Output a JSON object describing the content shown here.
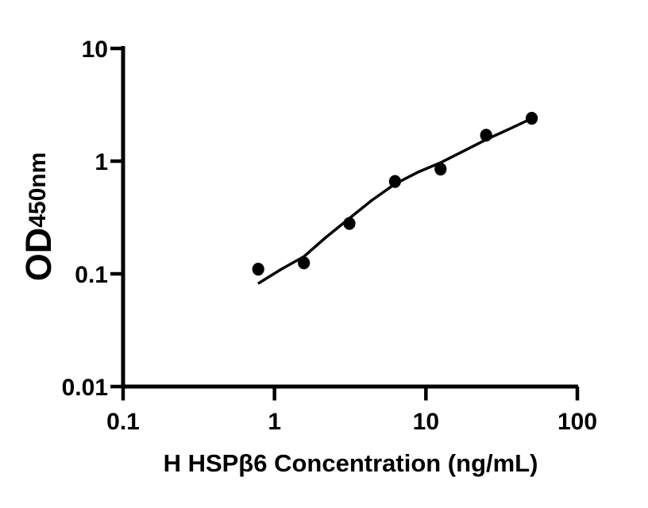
{
  "figure": {
    "background": "#ffffff",
    "foreground": "#000000"
  },
  "chart_data": {
    "type": "scatter",
    "title": "",
    "xlabel": "H HSPβ6 Concentration (ng/mL)",
    "ylabel_main": "OD",
    "ylabel_sub": "450nm",
    "x_scale": "log10",
    "y_scale": "log10",
    "xlim": [
      0.1,
      100
    ],
    "ylim": [
      0.01,
      10
    ],
    "grid": false,
    "legend": "none",
    "x_ticks": [
      {
        "value": 0.1,
        "label": "0.1"
      },
      {
        "value": 1,
        "label": "1"
      },
      {
        "value": 10,
        "label": "10"
      },
      {
        "value": 100,
        "label": "100"
      }
    ],
    "y_ticks": [
      {
        "value": 0.01,
        "label": "0.01"
      },
      {
        "value": 0.1,
        "label": "0.1"
      },
      {
        "value": 1,
        "label": "1"
      },
      {
        "value": 10,
        "label": "10"
      }
    ],
    "series": [
      {
        "name": "standard-curve-points",
        "marker": "filled-circle",
        "color": "#000000",
        "points": [
          {
            "x": 0.781,
            "y": 0.11
          },
          {
            "x": 1.563,
            "y": 0.125
          },
          {
            "x": 3.125,
            "y": 0.28
          },
          {
            "x": 6.25,
            "y": 0.66
          },
          {
            "x": 12.5,
            "y": 0.85
          },
          {
            "x": 25,
            "y": 1.7
          },
          {
            "x": 50,
            "y": 2.4
          }
        ]
      }
    ],
    "fit_curve": {
      "name": "four-parameter-logistic-fit",
      "color": "#000000",
      "points": [
        {
          "x": 0.79,
          "y": 0.083
        },
        {
          "x": 1.11,
          "y": 0.11
        },
        {
          "x": 1.56,
          "y": 0.142
        },
        {
          "x": 2.17,
          "y": 0.209
        },
        {
          "x": 3.11,
          "y": 0.309
        },
        {
          "x": 4.38,
          "y": 0.448
        },
        {
          "x": 6.27,
          "y": 0.629
        },
        {
          "x": 8.93,
          "y": 0.802
        },
        {
          "x": 12.6,
          "y": 0.974
        },
        {
          "x": 18.0,
          "y": 1.241
        },
        {
          "x": 25.1,
          "y": 1.556
        },
        {
          "x": 35.4,
          "y": 1.921
        },
        {
          "x": 49.8,
          "y": 2.385
        }
      ]
    }
  }
}
